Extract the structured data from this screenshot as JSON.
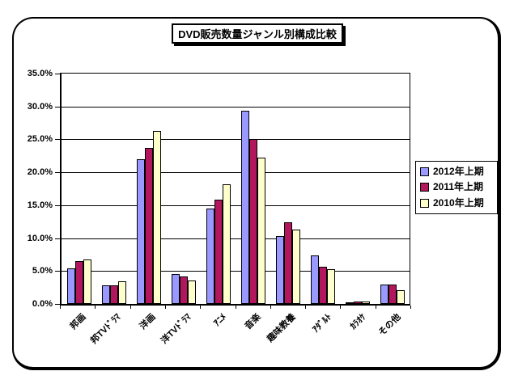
{
  "chart_data": {
    "type": "bar",
    "title": "DVD販売数量ジャンル別構成比較",
    "categories": [
      "邦画",
      "邦TVﾄﾞﾗﾏ",
      "洋画",
      "洋TVﾄﾞﾗﾏ",
      "ｱﾆﾒ",
      "音楽",
      "趣味教養",
      "ｱﾀﾞﾙﾄ",
      "ｶﾗｵｹ",
      "その他"
    ],
    "series": [
      {
        "name": "2012年上期",
        "color": "#9999FF",
        "values": [
          5.4,
          2.8,
          22.0,
          4.5,
          14.5,
          29.3,
          10.3,
          7.4,
          0.3,
          2.9
        ]
      },
      {
        "name": "2011年上期",
        "color": "#B2175E",
        "values": [
          6.5,
          2.8,
          23.7,
          4.2,
          15.8,
          25.1,
          12.4,
          5.7,
          0.4,
          3.0
        ]
      },
      {
        "name": "2010年上期",
        "color": "#FFFFCC",
        "values": [
          6.7,
          3.4,
          26.3,
          3.6,
          18.2,
          22.2,
          11.3,
          5.3,
          0.4,
          2.1
        ]
      }
    ],
    "xlabel": "",
    "ylabel": "",
    "ylim": [
      0,
      35
    ],
    "ytick_step": 5,
    "ytick_labels": [
      "0.0%",
      "5.0%",
      "10.0%",
      "15.0%",
      "20.0%",
      "25.0%",
      "30.0%",
      "35.0%"
    ],
    "grid": true,
    "legend_position": "right",
    "bar_border_color": "#000000",
    "background_color": "#FFFFFF"
  }
}
